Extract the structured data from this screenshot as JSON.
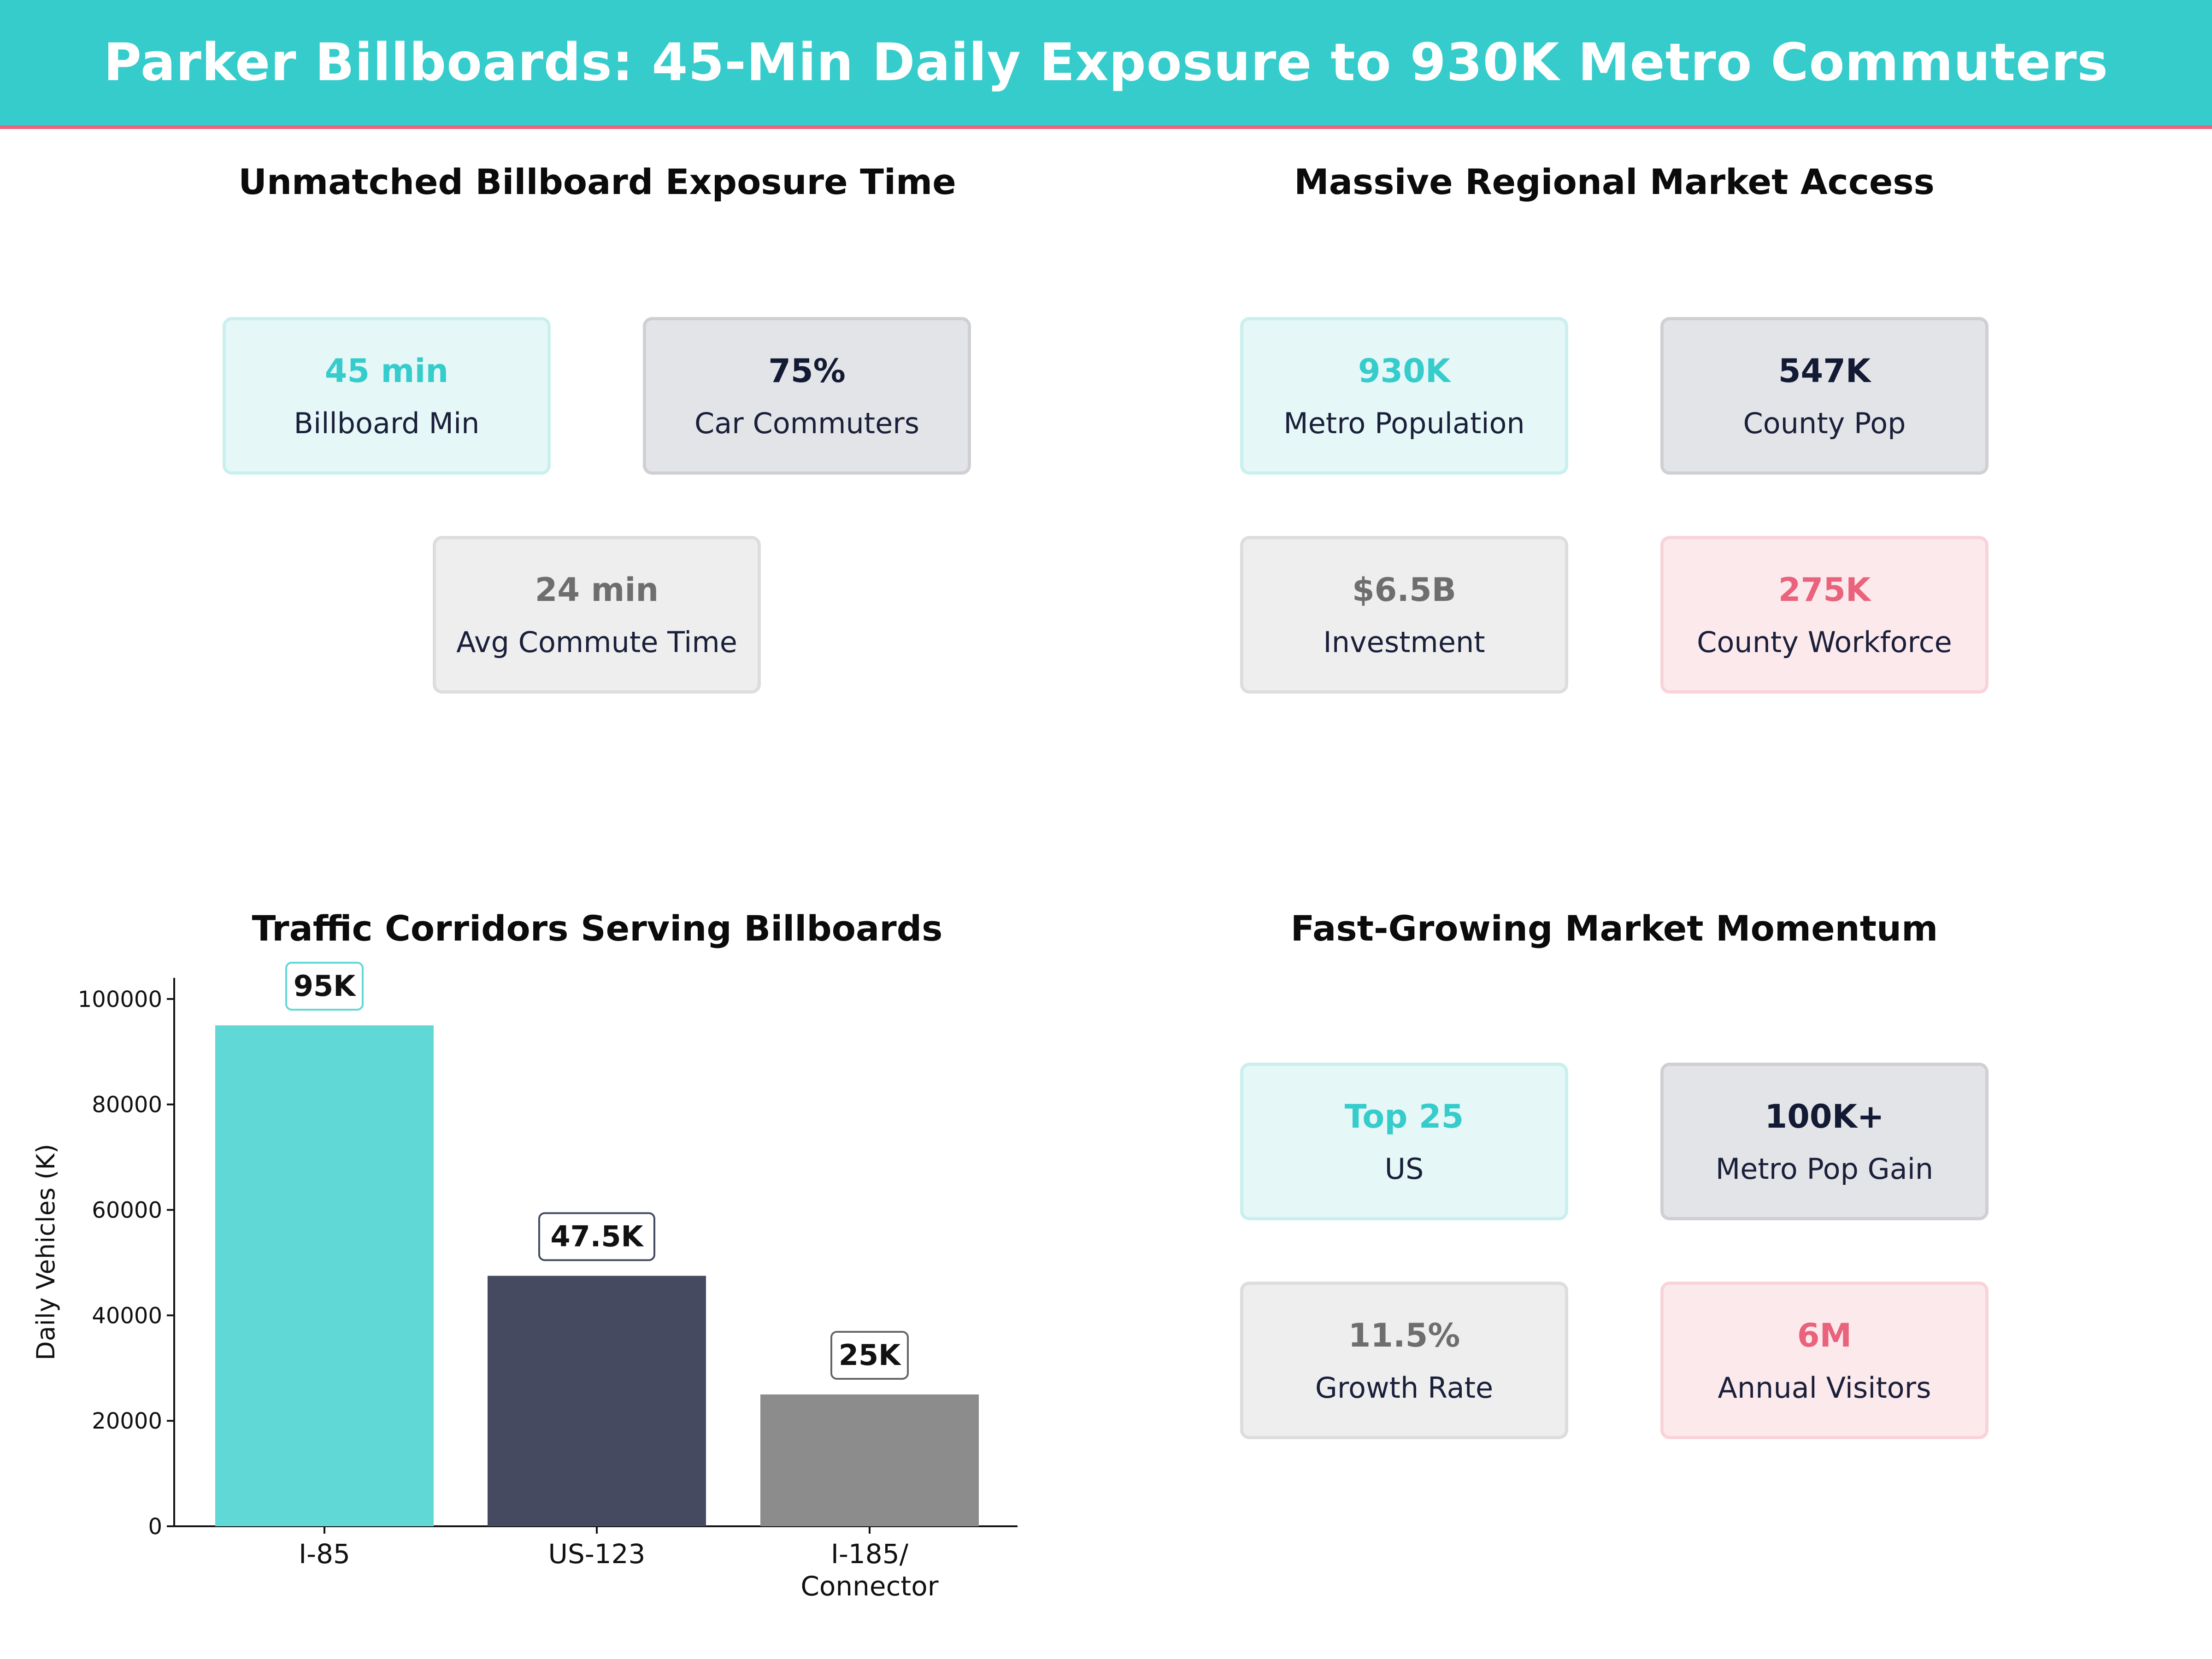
{
  "header": {
    "title": "Parker Billboards: 45-Min Daily Exposure to 930K Metro Commuters"
  },
  "colors": {
    "teal": "#36CCCC",
    "navy": "#131A33",
    "gray": "#6E6E6E",
    "pink": "#E8637B"
  },
  "panels": {
    "exposure": {
      "title": "Unmatched Billboard Exposure Time",
      "cards": [
        {
          "value": "45 min",
          "label": "Billboard Min",
          "tone": "teal"
        },
        {
          "value": "75%",
          "label": "Car Commuters",
          "tone": "navy"
        },
        {
          "value": "24 min",
          "label": "Avg Commute Time",
          "tone": "gray"
        }
      ]
    },
    "market": {
      "title": "Massive Regional Market Access",
      "cards": [
        {
          "value": "930K",
          "label": "Metro Population",
          "tone": "teal"
        },
        {
          "value": "547K",
          "label": "County Pop",
          "tone": "navy"
        },
        {
          "value": "$6.5B",
          "label": "Investment",
          "tone": "gray"
        },
        {
          "value": "275K",
          "label": "County Workforce",
          "tone": "pink"
        }
      ]
    },
    "momentum": {
      "title": "Fast-Growing Market Momentum",
      "cards": [
        {
          "value": "Top 25",
          "label": "US",
          "tone": "teal"
        },
        {
          "value": "100K+",
          "label": "Metro Pop Gain",
          "tone": "navy"
        },
        {
          "value": "11.5%",
          "label": "Growth Rate",
          "tone": "gray"
        },
        {
          "value": "6M",
          "label": "Annual Visitors",
          "tone": "pink"
        }
      ]
    }
  },
  "chart_data": {
    "type": "bar",
    "title": "Traffic Corridors Serving Billboards",
    "xlabel": "",
    "ylabel": "Daily Vehicles (K)",
    "categories": [
      "I-85",
      "US-123",
      "I-185/\nConnector"
    ],
    "values": [
      95000,
      47500,
      25000
    ],
    "data_labels": [
      "95K",
      "47.5K",
      "25K"
    ],
    "colors": [
      "#5FD8D6",
      "#454A60",
      "#8C8C8C"
    ],
    "label_border_colors": [
      "#5FD8D6",
      "#454A60",
      "#666666"
    ],
    "ylim": [
      0,
      104000
    ],
    "yticks": [
      0,
      20000,
      40000,
      60000,
      80000,
      100000
    ],
    "grid": false,
    "legend": "none"
  }
}
